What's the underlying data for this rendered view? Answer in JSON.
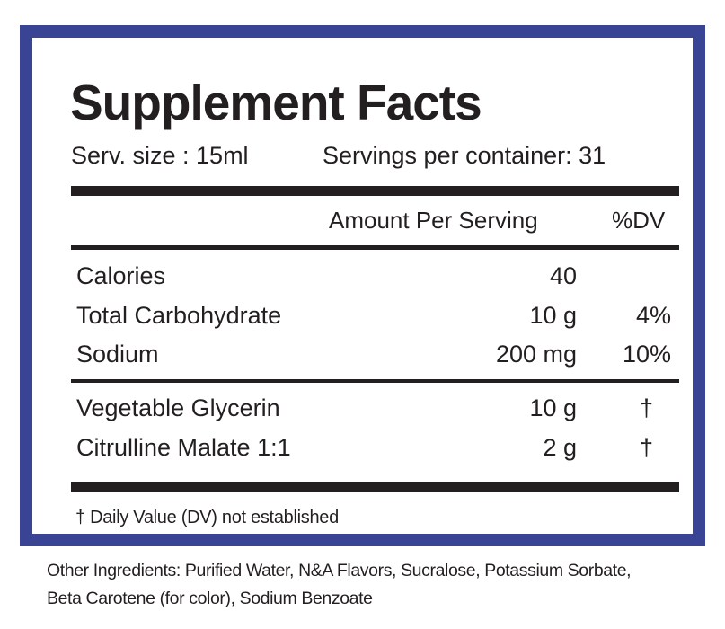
{
  "title": "Supplement Facts",
  "serving_size": "Serv. size : 15ml",
  "servings_per_container": "Servings per container: 31",
  "header": {
    "amount": "Amount Per Serving",
    "dv": "%DV"
  },
  "groups": [
    [
      {
        "name": "Calories",
        "amount": "40"
      },
      {
        "name": "Total Carbohydrate",
        "amount": "10 g",
        "dv": "4%"
      },
      {
        "name": "Sodium",
        "amount": "200 mg",
        "dv": "10%"
      }
    ],
    [
      {
        "name": "Vegetable Glycerin",
        "amount": "10 g",
        "dv": "†"
      },
      {
        "name": "Citrulline Malate 1:1",
        "amount": "2 g",
        "dv": "†"
      }
    ]
  ],
  "footnote": "† Daily Value (DV) not established",
  "other_ingredients": [
    "Other Ingredients: Purified Water, N&A Flavors, Sucralose, Potassium Sorbate,",
    "Beta Carotene (for color), Sodium Benzoate"
  ]
}
